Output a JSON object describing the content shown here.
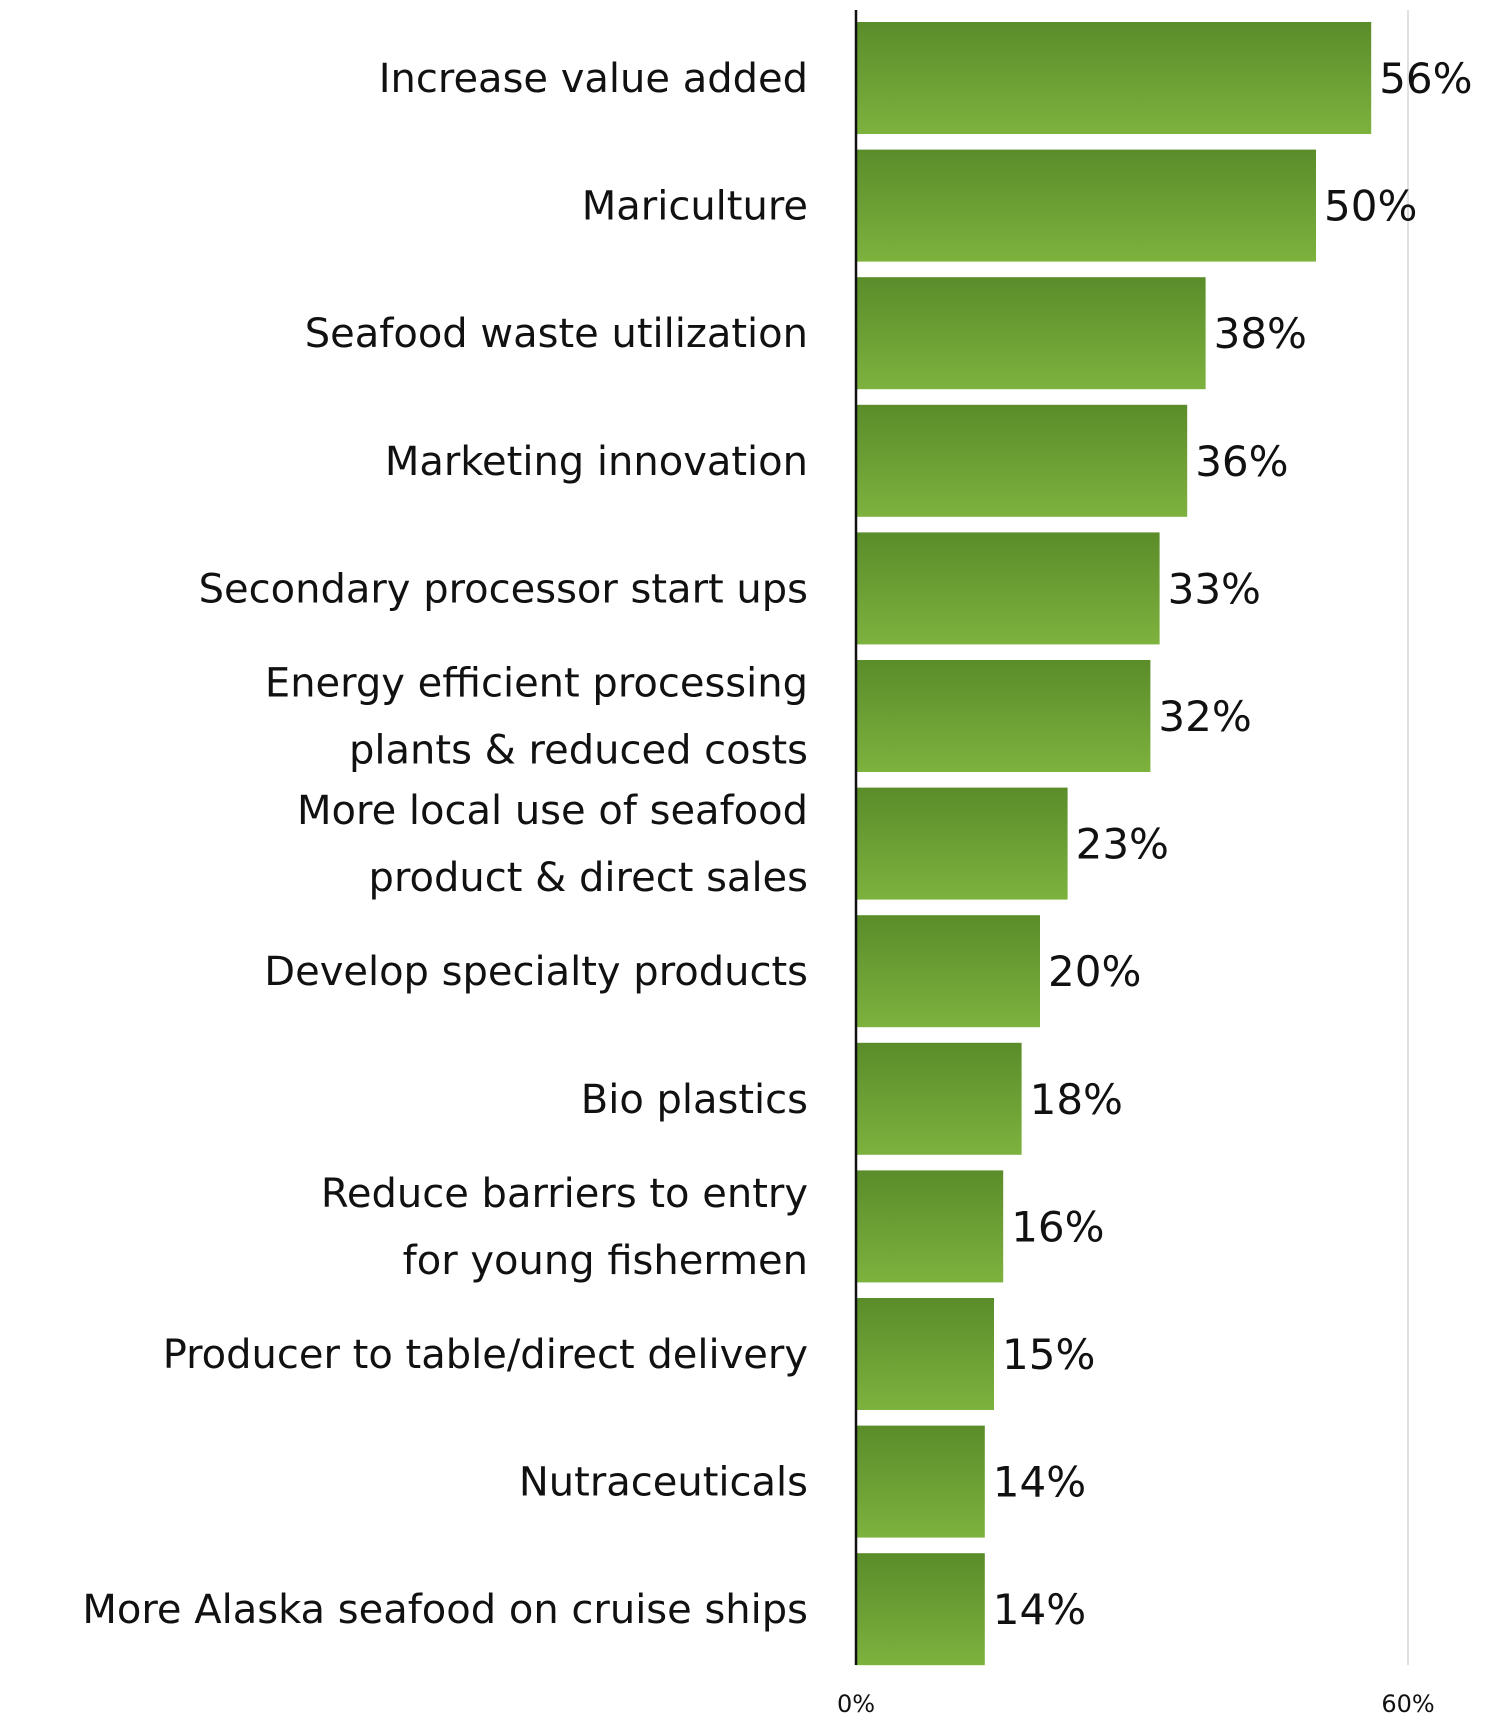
{
  "chart_data": {
    "type": "bar",
    "orientation": "horizontal",
    "categories": [
      [
        "Increase value added"
      ],
      [
        "Mariculture"
      ],
      [
        "Seafood waste utilization"
      ],
      [
        "Marketing innovation"
      ],
      [
        "Secondary processor start ups"
      ],
      [
        "Energy efficient processing",
        "plants & reduced costs"
      ],
      [
        "More local use of seafood",
        "product & direct sales"
      ],
      [
        "Develop specialty products"
      ],
      [
        "Bio plastics"
      ],
      [
        "Reduce barriers to entry",
        "for young fishermen"
      ],
      [
        "Producer to table/direct delivery"
      ],
      [
        "Nutraceuticals"
      ],
      [
        "More Alaska seafood on cruise ships"
      ]
    ],
    "values": [
      56,
      50,
      38,
      36,
      33,
      32,
      23,
      20,
      18,
      16,
      15,
      14,
      14
    ],
    "value_labels": [
      "56%",
      "50%",
      "38%",
      "36%",
      "33%",
      "32%",
      "23%",
      "20%",
      "18%",
      "16%",
      "15%",
      "14%",
      "14%"
    ],
    "xlim": [
      0,
      60
    ],
    "x_ticks": [
      0,
      60
    ],
    "x_tick_labels": [
      "0%",
      "60%"
    ],
    "grid": true,
    "legend": "none",
    "title": "",
    "xlabel": "",
    "ylabel": "",
    "colors": {
      "bar_top": "#5a8c2a",
      "bar_bottom": "#7db23e",
      "axis": "#111111",
      "grid": "#d6d6d6"
    }
  }
}
